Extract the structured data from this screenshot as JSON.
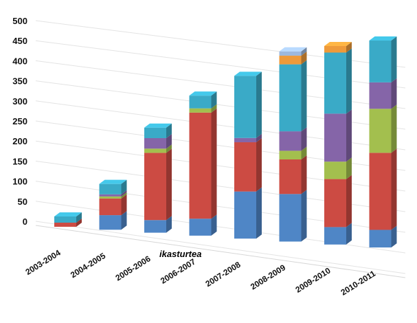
{
  "chart_data": {
    "type": "bar",
    "stacked": true,
    "three_d": true,
    "categories": [
      "2003-2004",
      "2004-2005",
      "2005-2006",
      "2006-2007",
      "2007-2008",
      "2008-2009",
      "2009-2010",
      "2010-2011"
    ],
    "series": [
      {
        "color": "#4f86c6",
        "values": [
          0,
          35,
          30,
          40,
          110,
          110,
          40,
          40
        ]
      },
      {
        "color": "#cc4b43",
        "values": [
          10,
          40,
          160,
          250,
          115,
          80,
          110,
          175
        ]
      },
      {
        "color": "#a3bf4e",
        "values": [
          0,
          5,
          10,
          10,
          0,
          20,
          40,
          100
        ]
      },
      {
        "color": "#8565a8",
        "values": [
          0,
          5,
          25,
          0,
          10,
          45,
          110,
          60
        ]
      },
      {
        "color": "#3aaac7",
        "values": [
          15,
          25,
          25,
          30,
          145,
          155,
          140,
          95
        ]
      },
      {
        "color": "#ee9a3a",
        "values": [
          0,
          0,
          0,
          0,
          0,
          20,
          15,
          0
        ]
      },
      {
        "color": "#9db9de",
        "values": [
          0,
          0,
          0,
          0,
          0,
          10,
          0,
          0
        ]
      }
    ],
    "y_ticks": [
      0,
      50,
      100,
      150,
      200,
      250,
      300,
      350,
      400,
      450,
      500
    ],
    "ylim": [
      0,
      500
    ],
    "grid": true,
    "legend": "none",
    "annotation": "ikasturtea"
  }
}
